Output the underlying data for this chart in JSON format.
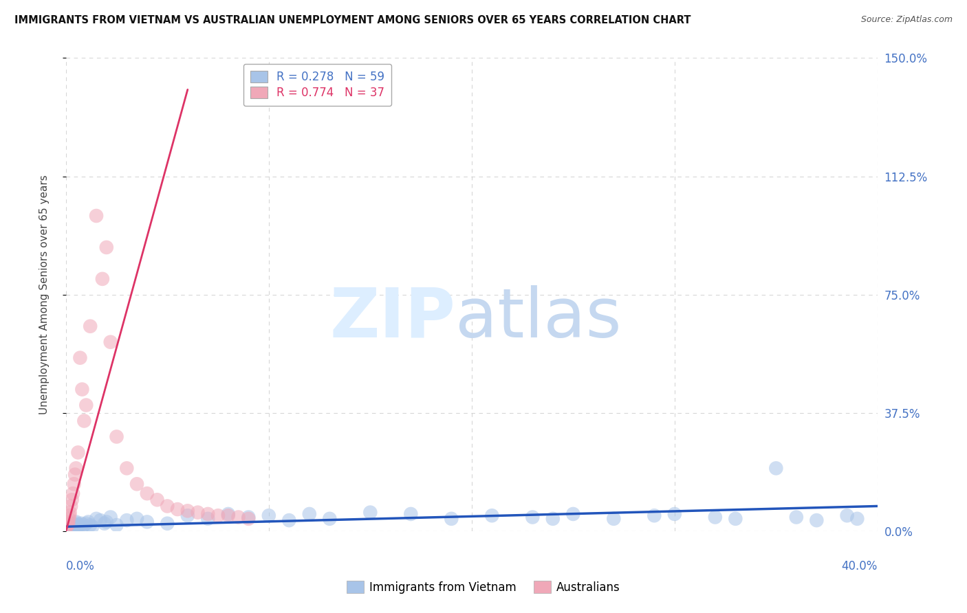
{
  "title": "IMMIGRANTS FROM VIETNAM VS AUSTRALIAN UNEMPLOYMENT AMONG SENIORS OVER 65 YEARS CORRELATION CHART",
  "source": "Source: ZipAtlas.com",
  "ylabel": "Unemployment Among Seniors over 65 years",
  "right_yticks": [
    "0.0%",
    "37.5%",
    "75.0%",
    "112.5%",
    "150.0%"
  ],
  "right_ytick_vals": [
    0.0,
    37.5,
    75.0,
    112.5,
    150.0
  ],
  "xlim": [
    0.0,
    40.0
  ],
  "ylim": [
    0.0,
    150.0
  ],
  "legend_r1": "R = 0.278",
  "legend_n1": "N = 59",
  "legend_r2": "R = 0.774",
  "legend_n2": "N = 37",
  "blue_color": "#a8c4e8",
  "pink_color": "#f0a8b8",
  "blue_line_color": "#2255bb",
  "pink_line_color": "#dd3366",
  "blue_scatter_x": [
    0.05,
    0.08,
    0.1,
    0.12,
    0.15,
    0.18,
    0.2,
    0.25,
    0.3,
    0.35,
    0.4,
    0.45,
    0.5,
    0.55,
    0.6,
    0.65,
    0.7,
    0.75,
    0.8,
    0.9,
    1.0,
    1.1,
    1.2,
    1.3,
    1.5,
    1.7,
    1.9,
    2.0,
    2.2,
    2.5,
    3.0,
    3.5,
    4.0,
    5.0,
    6.0,
    7.0,
    8.0,
    9.0,
    10.0,
    11.0,
    12.0,
    13.0,
    15.0,
    17.0,
    19.0,
    21.0,
    23.0,
    24.0,
    25.0,
    27.0,
    29.0,
    30.0,
    32.0,
    33.0,
    35.0,
    36.0,
    37.0,
    38.5,
    39.0
  ],
  "blue_scatter_y": [
    1.0,
    1.5,
    2.0,
    1.2,
    1.8,
    2.5,
    1.5,
    1.0,
    2.0,
    1.5,
    2.2,
    1.8,
    3.0,
    2.5,
    1.5,
    2.0,
    1.8,
    2.5,
    1.5,
    2.0,
    2.5,
    3.0,
    2.0,
    1.5,
    4.0,
    3.5,
    2.5,
    3.0,
    4.5,
    2.0,
    3.5,
    4.0,
    3.0,
    2.5,
    5.0,
    4.0,
    5.5,
    4.5,
    5.0,
    3.5,
    5.5,
    4.0,
    6.0,
    5.5,
    4.0,
    5.0,
    4.5,
    4.0,
    5.5,
    4.0,
    5.0,
    5.5,
    4.5,
    4.0,
    20.0,
    4.5,
    3.5,
    5.0,
    4.0
  ],
  "pink_scatter_x": [
    0.05,
    0.08,
    0.1,
    0.12,
    0.15,
    0.18,
    0.2,
    0.25,
    0.3,
    0.35,
    0.4,
    0.45,
    0.5,
    0.6,
    0.7,
    0.8,
    0.9,
    1.0,
    1.2,
    1.5,
    1.8,
    2.0,
    2.2,
    2.5,
    3.0,
    3.5,
    4.0,
    4.5,
    5.0,
    5.5,
    6.0,
    6.5,
    7.0,
    7.5,
    8.0,
    8.5,
    9.0
  ],
  "pink_scatter_y": [
    1.5,
    2.0,
    3.0,
    2.5,
    4.0,
    5.0,
    6.0,
    8.0,
    10.0,
    12.0,
    15.0,
    18.0,
    20.0,
    25.0,
    55.0,
    45.0,
    35.0,
    40.0,
    65.0,
    100.0,
    80.0,
    90.0,
    60.0,
    30.0,
    20.0,
    15.0,
    12.0,
    10.0,
    8.0,
    7.0,
    6.5,
    6.0,
    5.5,
    5.0,
    5.0,
    4.5,
    4.0
  ],
  "pink_line_x": [
    0.0,
    6.0
  ],
  "pink_line_y": [
    0.0,
    140.0
  ],
  "blue_line_x": [
    0.0,
    40.0
  ],
  "blue_line_y": [
    1.5,
    8.0
  ]
}
